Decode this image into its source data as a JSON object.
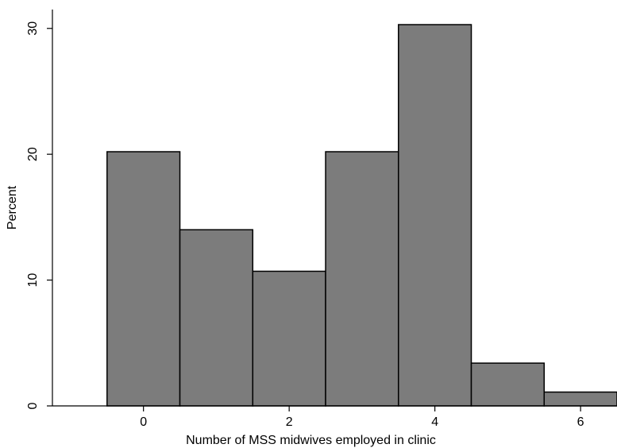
{
  "chart_data": {
    "type": "bar",
    "title": "",
    "xlabel": "Number of MSS midwives employed in clinic",
    "ylabel": "Percent",
    "x": [
      0,
      1,
      2,
      3,
      4,
      5,
      6
    ],
    "values": [
      20.2,
      14.0,
      10.7,
      20.2,
      30.3,
      3.4,
      1.1
    ],
    "bar_width": 1,
    "xlim": [
      -1.25,
      6.5
    ],
    "ylim": [
      0,
      31.5
    ],
    "xticks": [
      0,
      2,
      4,
      6
    ],
    "yticks": [
      0,
      10,
      20,
      30
    ],
    "xtick_labels": [
      "0",
      "2",
      "4",
      "6"
    ],
    "ytick_labels": [
      "0",
      "10",
      "20",
      "30"
    ],
    "bar_color": "#7c7c7c",
    "edge_color": "#000000",
    "grid": false,
    "legend": "none"
  }
}
